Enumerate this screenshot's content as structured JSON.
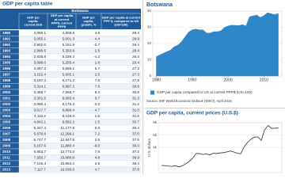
{
  "table": {
    "title": "GDP per capita table",
    "group_header": "Botswana",
    "columns": [
      [
        "GDP per",
        "capita,",
        "current $US"
      ],
      [
        "GDP per capita",
        "at current",
        "PPP$, current",
        "PPP$"
      ],
      [
        "GDP per",
        "capita,",
        "growth, %"
      ],
      [
        "GDP per capita at current",
        "PPP $, compared to US",
        "(US=100)"
      ]
    ],
    "rows": [
      [
        "1990",
        "3,058.1",
        "4,808.8",
        "4.9",
        "28.4"
      ],
      [
        "1991",
        "3,055.1",
        "5,001.3",
        "4.4",
        "28.9"
      ],
      [
        "1992",
        "2,902.0",
        "5,151.5",
        "-2.7",
        "28.4"
      ],
      [
        "1993",
        "2,996.6",
        "5,353.6",
        "1.5",
        "28.4"
      ],
      [
        "1994",
        "2,838.8",
        "5,239.4",
        "-4.2",
        "26.4"
      ],
      [
        "1995",
        "3,098.0",
        "5,255.4",
        "1.8",
        "26.4"
      ],
      [
        "1996",
        "3,057.3",
        "5,655.1",
        "5.7",
        "27.3"
      ],
      [
        "1997",
        "3,152.4",
        "5,905.1",
        "2.5",
        "27.3"
      ],
      [
        "1998",
        "3,197.3",
        "6,271.2",
        "7.6",
        "27.8"
      ],
      [
        "1999",
        "3,314.1",
        "6,997.2",
        "7.6",
        "29.9"
      ],
      [
        "2000",
        "3,468.7",
        "7,558.7",
        "8.4",
        "30.8"
      ],
      [
        "2001",
        "3,301.5",
        "8,093.4",
        "6.7",
        "31.3"
      ],
      [
        "2002",
        "3,090.4",
        "8,175.3",
        "0.2",
        "31.2"
      ],
      [
        "2003",
        "3,017.7",
        "8,888.4",
        "4.7",
        "31.0"
      ],
      [
        "2004",
        "4,110.2",
        "8,416.0",
        "1.6",
        "31.6"
      ],
      [
        "2005",
        "4,842.1",
        "9,552.2",
        "1.5",
        "30.7"
      ],
      [
        "2006",
        "5,347.4",
        "11,177.9",
        "6.6",
        "36.4"
      ],
      [
        "2007",
        "5,676.8",
        "12,299.1",
        "7.2",
        "37.0"
      ],
      [
        "2008",
        "5,727.7",
        "12,847.8",
        "2.5",
        "37.5"
      ],
      [
        "2009",
        "5,167.6",
        "11,880.4",
        "-8.0",
        "36.0"
      ],
      [
        "2010",
        "6,853.7",
        "12,773.3",
        "7.8",
        "37.2"
      ],
      [
        "2011",
        "7,550.7",
        "15,680.9",
        "4.8",
        "38.9"
      ],
      [
        "2012",
        "7,106.4",
        "15,863.4",
        "2.9",
        "38.4"
      ],
      [
        "2013",
        "7,117.7",
        "16,036.8",
        "4.7",
        "37.8"
      ]
    ]
  },
  "chart_data": [
    {
      "type": "area",
      "title": "Botswana",
      "x": [
        1980,
        1981,
        1982,
        1983,
        1984,
        1985,
        1986,
        1987,
        1988,
        1989,
        1990,
        1991,
        1992,
        1993,
        1994,
        1995,
        1996,
        1997,
        1998,
        1999,
        2000,
        2001,
        2002,
        2003,
        2004,
        2005,
        2006,
        2007,
        2008,
        2009,
        2010,
        2011,
        2012,
        2013,
        2014
      ],
      "series": [
        {
          "name": "GDP per capita compared to US at current PPP$ (US=100)",
          "color": "#2e86c9",
          "values": [
            12,
            13,
            14,
            15,
            16,
            18,
            19,
            21,
            24,
            27,
            28.4,
            28.9,
            28.4,
            28.4,
            26.4,
            26.4,
            27.3,
            27.3,
            27.8,
            29.9,
            30.8,
            31.3,
            31.2,
            31.0,
            31.6,
            30.7,
            36.4,
            37.0,
            37.5,
            36.0,
            37.2,
            38.9,
            38.4,
            37.8,
            38.5
          ]
        }
      ],
      "xlim": [
        1979,
        2015
      ],
      "xticks": [
        1980,
        1990,
        2000,
        2010
      ],
      "ylim": [
        0,
        40
      ],
      "yticks": [
        0,
        10,
        20,
        30,
        40
      ],
      "grid": true,
      "source": "Source: IMF World Economic Outlook (WEO), April 2015"
    },
    {
      "type": "line",
      "title": "GDP per capita, current prices (U.S.$)",
      "y_label": "U.S. dollars",
      "x": [
        1980,
        1981,
        1982,
        1983,
        1984,
        1985,
        1986,
        1987,
        1988,
        1989,
        1990,
        1991,
        1992,
        1993,
        1994,
        1995,
        1996,
        1997,
        1998,
        1999,
        2000,
        2001,
        2002,
        2003,
        2004,
        2005,
        2006,
        2007,
        2008,
        2009,
        2010,
        2011,
        2012,
        2013,
        2014
      ],
      "series": [
        {
          "name": "GDP per capita, current prices",
          "color": "#2b2b2b",
          "values": [
            1150,
            1100,
            1050,
            1000,
            1100,
            900,
            1100,
            1400,
            1800,
            2300,
            3058.1,
            3055.1,
            2902.0,
            2996.6,
            2838.8,
            3098.0,
            3057.3,
            3152.4,
            3197.3,
            3314.1,
            3468.7,
            3301.5,
            3090.4,
            3017.7,
            4110.2,
            4842.1,
            5347.4,
            5676.8,
            5727.7,
            5167.6,
            6853.7,
            7550.7,
            7106.4,
            7117.7,
            7150
          ]
        }
      ],
      "xlim": [
        1979,
        2015
      ],
      "ylim": [
        0,
        8000
      ],
      "yticks": [
        {
          "value": 4000,
          "label": "4k"
        },
        {
          "value": 6000,
          "label": "6k"
        },
        {
          "value": 8000,
          "label": "8k"
        }
      ],
      "grid": true
    }
  ]
}
